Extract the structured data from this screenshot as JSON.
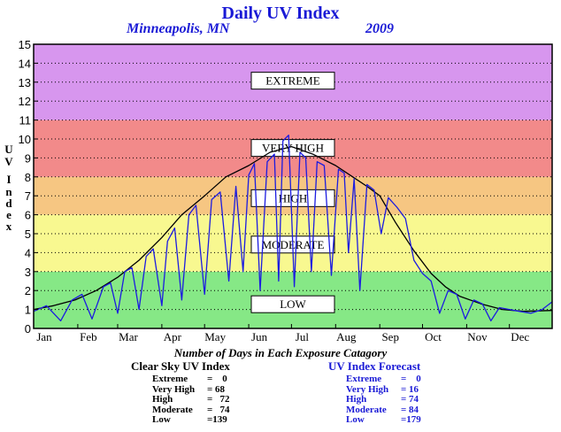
{
  "title": "Daily UV Index",
  "location": "Minneapolis, MN",
  "year": "2009",
  "ylabel_chars": [
    "U",
    "V",
    "",
    "I",
    "n",
    "d",
    "e",
    "x"
  ],
  "xlabel": "Number of Days in Each Exposure Catagory",
  "clear_sky": {
    "header": "Clear Sky UV Index",
    "rows": [
      {
        "label": "Extreme",
        "value": "=    0"
      },
      {
        "label": "Very High",
        "value": "= 68"
      },
      {
        "label": "High",
        "value": "=   72"
      },
      {
        "label": "Moderate",
        "value": "=   74"
      },
      {
        "label": "Low",
        "value": "=139"
      }
    ]
  },
  "forecast": {
    "header": "UV Index Forecast",
    "rows": [
      {
        "label": "Extreme",
        "value": "=    0"
      },
      {
        "label": "Very High",
        "value": "= 16"
      },
      {
        "label": "High",
        "value": "= 74"
      },
      {
        "label": "Moderate",
        "value": "= 84"
      },
      {
        "label": "Low",
        "value": "=179"
      }
    ]
  },
  "colors": {
    "low": "#86e886",
    "moderate": "#f8f890",
    "high": "#f6c682",
    "very_high": "#f28a8a",
    "extreme": "#d796ee",
    "clear_sky_line": "#000000",
    "forecast_line": "#1c1ce0"
  },
  "chart_data": {
    "type": "line",
    "title": "Daily UV Index",
    "xlabel": "",
    "ylabel": "UV Index",
    "ylim": [
      0,
      15
    ],
    "xlim": [
      1,
      365
    ],
    "yticks": [
      0,
      1,
      2,
      3,
      4,
      5,
      6,
      7,
      8,
      9,
      10,
      11,
      12,
      13,
      14,
      15
    ],
    "months": [
      "Jan",
      "Feb",
      "Mar",
      "Apr",
      "May",
      "Jun",
      "Jul",
      "Aug",
      "Sep",
      "Oct",
      "Nov",
      "Dec"
    ],
    "month_start_days": [
      1,
      32,
      60,
      91,
      121,
      152,
      182,
      213,
      244,
      274,
      305,
      335
    ],
    "categories": [
      {
        "name": "LOW",
        "range": [
          0,
          3
        ],
        "label_y": 1.3
      },
      {
        "name": "MODERATE",
        "range": [
          3,
          6
        ],
        "label_y": 4.45
      },
      {
        "name": "HIGH",
        "range": [
          6,
          8
        ],
        "label_y": 6.9
      },
      {
        "name": "VERY HIGH",
        "range": [
          8,
          11
        ],
        "label_y": 9.55
      },
      {
        "name": "EXTREME",
        "range": [
          11,
          15
        ],
        "label_y": 13.1
      }
    ],
    "series": [
      {
        "name": "Clear Sky UV Index",
        "x": [
          1,
          15,
          30,
          45,
          60,
          75,
          91,
          105,
          121,
          136,
          152,
          167,
          182,
          197,
          213,
          225,
          235,
          244,
          255,
          268,
          280,
          290,
          300,
          315,
          330,
          345,
          365
        ],
        "y": [
          1.0,
          1.2,
          1.5,
          2.0,
          2.7,
          3.6,
          4.8,
          6.0,
          7.0,
          8.0,
          8.6,
          9.3,
          9.6,
          9.2,
          8.6,
          8.0,
          7.5,
          7.0,
          5.6,
          4.1,
          2.9,
          2.2,
          1.7,
          1.3,
          1.0,
          0.9,
          0.95
        ]
      },
      {
        "name": "UV Index Forecast",
        "x": [
          1,
          10,
          20,
          28,
          35,
          42,
          50,
          55,
          60,
          65,
          70,
          75,
          80,
          85,
          91,
          95,
          100,
          105,
          110,
          115,
          121,
          126,
          132,
          138,
          143,
          148,
          152,
          156,
          160,
          165,
          170,
          173,
          176,
          180,
          184,
          188,
          192,
          196,
          200,
          205,
          210,
          215,
          219,
          222,
          226,
          230,
          235,
          240,
          245,
          250,
          256,
          262,
          268,
          274,
          280,
          286,
          292,
          298,
          304,
          310,
          316,
          322,
          328,
          335,
          342,
          350,
          358,
          365
        ],
        "y": [
          0.9,
          1.2,
          0.4,
          1.5,
          1.8,
          0.5,
          2.2,
          2.4,
          0.8,
          3.0,
          3.2,
          1.0,
          3.8,
          4.2,
          1.2,
          4.6,
          5.3,
          1.5,
          6.0,
          6.5,
          1.8,
          6.8,
          7.2,
          2.5,
          7.5,
          3.0,
          8.1,
          8.7,
          2.0,
          8.8,
          9.2,
          2.5,
          9.9,
          10.2,
          2.2,
          9.3,
          9.0,
          3.0,
          8.8,
          8.6,
          2.8,
          8.4,
          8.2,
          4.0,
          7.9,
          2.0,
          7.6,
          7.3,
          5.0,
          6.9,
          6.4,
          5.8,
          3.6,
          2.9,
          2.5,
          0.8,
          2.0,
          1.8,
          0.5,
          1.5,
          1.3,
          0.4,
          1.1,
          1.0,
          0.9,
          0.8,
          1.0,
          1.4
        ]
      }
    ]
  }
}
